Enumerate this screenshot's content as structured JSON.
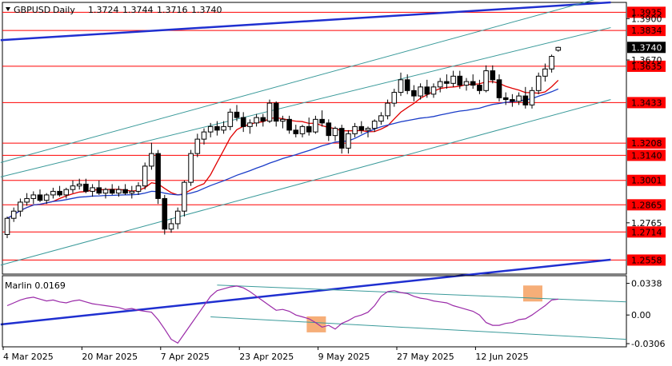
{
  "chart_data": {
    "type": "candlestick",
    "symbol": "GBPUSD",
    "timeframe": "Daily",
    "ohlc_header": {
      "open": "1.3724",
      "high": "1.3744",
      "low": "1.3716",
      "close": "1.3740"
    },
    "title": "GBPUSD,Daily  1.3724 1.3744 1.3716 1.3740",
    "price_axis": {
      "ylim": [
        1.248,
        1.399
      ],
      "tick_labels": [
        "1.3900",
        "1.3670",
        "1.2765"
      ],
      "current_price": "1.3740"
    },
    "horizontal_levels": [
      {
        "value": 1.3935,
        "label": "1.3935",
        "color": "#ff0000"
      },
      {
        "value": 1.3834,
        "label": "1.3834",
        "color": "#ff0000"
      },
      {
        "value": 1.3635,
        "label": "1.3635",
        "color": "#ff0000"
      },
      {
        "value": 1.3433,
        "label": "1.3433",
        "color": "#ff0000"
      },
      {
        "value": 1.3208,
        "label": "1.3208",
        "color": "#ff0000"
      },
      {
        "value": 1.314,
        "label": "1.3140",
        "color": "#ff0000"
      },
      {
        "value": 1.3001,
        "label": "1.3001",
        "color": "#ff0000"
      },
      {
        "value": 1.2865,
        "label": "1.2865",
        "color": "#ff0000"
      },
      {
        "value": 1.2714,
        "label": "1.2714",
        "color": "#ff0000"
      },
      {
        "value": 1.2558,
        "label": "1.2558",
        "color": "#ff0000"
      }
    ],
    "x_axis": {
      "date_labels": [
        {
          "label": "4 Mar 2025",
          "index": 0
        },
        {
          "label": "20 Mar 2025",
          "index": 12
        },
        {
          "label": "7 Apr 2025",
          "index": 24
        },
        {
          "label": "23 Apr 2025",
          "index": 36
        },
        {
          "label": "9 May 2025",
          "index": 48
        },
        {
          "label": "27 May 2025",
          "index": 60
        },
        {
          "label": "12 Jun 2025",
          "index": 72
        }
      ]
    },
    "candles": [
      [
        1.27,
        1.28,
        1.268,
        1.279
      ],
      [
        1.279,
        1.285,
        1.277,
        1.283
      ],
      [
        1.283,
        1.29,
        1.28,
        1.288
      ],
      [
        1.288,
        1.293,
        1.286,
        1.29
      ],
      [
        1.29,
        1.294,
        1.287,
        1.292
      ],
      [
        1.292,
        1.295,
        1.288,
        1.289
      ],
      [
        1.289,
        1.293,
        1.287,
        1.292
      ],
      [
        1.292,
        1.296,
        1.29,
        1.294
      ],
      [
        1.294,
        1.297,
        1.291,
        1.292
      ],
      [
        1.292,
        1.296,
        1.29,
        1.295
      ],
      [
        1.295,
        1.3,
        1.293,
        1.297
      ],
      [
        1.297,
        1.301,
        1.295,
        1.298
      ],
      [
        1.298,
        1.301,
        1.293,
        1.294
      ],
      [
        1.294,
        1.298,
        1.291,
        1.296
      ],
      [
        1.296,
        1.3,
        1.292,
        1.293
      ],
      [
        1.293,
        1.296,
        1.29,
        1.295
      ],
      [
        1.295,
        1.298,
        1.292,
        1.293
      ],
      [
        1.293,
        1.297,
        1.291,
        1.295
      ],
      [
        1.295,
        1.298,
        1.292,
        1.293
      ],
      [
        1.293,
        1.297,
        1.29,
        1.294
      ],
      [
        1.294,
        1.299,
        1.292,
        1.297
      ],
      [
        1.297,
        1.31,
        1.295,
        1.308
      ],
      [
        1.308,
        1.321,
        1.306,
        1.315
      ],
      [
        1.315,
        1.317,
        1.287,
        1.29
      ],
      [
        1.29,
        1.292,
        1.27,
        1.273
      ],
      [
        1.273,
        1.279,
        1.271,
        1.276
      ],
      [
        1.276,
        1.285,
        1.273,
        1.283
      ],
      [
        1.283,
        1.3,
        1.28,
        1.299
      ],
      [
        1.299,
        1.317,
        1.297,
        1.315
      ],
      [
        1.315,
        1.326,
        1.313,
        1.323
      ],
      [
        1.323,
        1.329,
        1.32,
        1.327
      ],
      [
        1.327,
        1.332,
        1.324,
        1.33
      ],
      [
        1.33,
        1.333,
        1.325,
        1.328
      ],
      [
        1.328,
        1.333,
        1.326,
        1.33
      ],
      [
        1.33,
        1.34,
        1.328,
        1.338
      ],
      [
        1.338,
        1.342,
        1.333,
        1.335
      ],
      [
        1.335,
        1.338,
        1.327,
        1.33
      ],
      [
        1.33,
        1.334,
        1.326,
        1.332
      ],
      [
        1.332,
        1.337,
        1.33,
        1.335
      ],
      [
        1.335,
        1.337,
        1.33,
        1.333
      ],
      [
        1.333,
        1.345,
        1.332,
        1.343
      ],
      [
        1.343,
        1.344,
        1.33,
        1.333
      ],
      [
        1.333,
        1.336,
        1.329,
        1.334
      ],
      [
        1.334,
        1.336,
        1.326,
        1.328
      ],
      [
        1.328,
        1.331,
        1.324,
        1.326
      ],
      [
        1.326,
        1.331,
        1.324,
        1.33
      ],
      [
        1.33,
        1.335,
        1.325,
        1.327
      ],
      [
        1.327,
        1.336,
        1.326,
        1.334
      ],
      [
        1.334,
        1.339,
        1.33,
        1.332
      ],
      [
        1.332,
        1.334,
        1.322,
        1.325
      ],
      [
        1.325,
        1.33,
        1.322,
        1.329
      ],
      [
        1.329,
        1.331,
        1.315,
        1.318
      ],
      [
        1.318,
        1.328,
        1.315,
        1.326
      ],
      [
        1.326,
        1.332,
        1.324,
        1.33
      ],
      [
        1.33,
        1.333,
        1.326,
        1.328
      ],
      [
        1.328,
        1.33,
        1.324,
        1.329
      ],
      [
        1.329,
        1.334,
        1.327,
        1.333
      ],
      [
        1.333,
        1.338,
        1.331,
        1.336
      ],
      [
        1.336,
        1.345,
        1.334,
        1.343
      ],
      [
        1.343,
        1.351,
        1.341,
        1.349
      ],
      [
        1.349,
        1.36,
        1.347,
        1.356
      ],
      [
        1.356,
        1.359,
        1.348,
        1.35
      ],
      [
        1.35,
        1.353,
        1.344,
        1.347
      ],
      [
        1.347,
        1.354,
        1.345,
        1.352
      ],
      [
        1.352,
        1.356,
        1.346,
        1.348
      ],
      [
        1.348,
        1.354,
        1.346,
        1.352
      ],
      [
        1.352,
        1.357,
        1.349,
        1.355
      ],
      [
        1.355,
        1.359,
        1.351,
        1.354
      ],
      [
        1.354,
        1.361,
        1.352,
        1.358
      ],
      [
        1.358,
        1.361,
        1.351,
        1.353
      ],
      [
        1.353,
        1.357,
        1.35,
        1.355
      ],
      [
        1.355,
        1.359,
        1.351,
        1.353
      ],
      [
        1.353,
        1.356,
        1.348,
        1.35
      ],
      [
        1.35,
        1.364,
        1.349,
        1.361
      ],
      [
        1.361,
        1.364,
        1.354,
        1.356
      ],
      [
        1.356,
        1.359,
        1.344,
        1.346
      ],
      [
        1.346,
        1.349,
        1.342,
        1.345
      ],
      [
        1.345,
        1.348,
        1.341,
        1.344
      ],
      [
        1.344,
        1.349,
        1.342,
        1.347
      ],
      [
        1.347,
        1.352,
        1.34,
        1.342
      ],
      [
        1.342,
        1.352,
        1.34,
        1.35
      ],
      [
        1.35,
        1.36,
        1.348,
        1.358
      ],
      [
        1.358,
        1.365,
        1.355,
        1.362
      ],
      [
        1.362,
        1.37,
        1.36,
        1.369
      ],
      [
        1.3724,
        1.3744,
        1.3716,
        1.374
      ]
    ],
    "indicator": {
      "name": "Marlin",
      "value": "0.0169",
      "label": "Marlin 0.0169",
      "ylim": [
        -0.034,
        0.042
      ],
      "tick_labels": [
        "0.0338",
        "0.00",
        "-0.0306"
      ],
      "values": [
        0.01,
        0.013,
        0.016,
        0.018,
        0.019,
        0.017,
        0.015,
        0.016,
        0.014,
        0.013,
        0.015,
        0.016,
        0.014,
        0.012,
        0.011,
        0.01,
        0.009,
        0.008,
        0.006,
        0.007,
        0.005,
        0.004,
        0.003,
        -0.005,
        -0.015,
        -0.026,
        -0.03,
        -0.02,
        -0.01,
        0.0,
        0.01,
        0.02,
        0.026,
        0.028,
        0.03,
        0.031,
        0.029,
        0.025,
        0.02,
        0.015,
        0.01,
        0.005,
        0.006,
        0.004,
        0.0,
        -0.002,
        -0.004,
        -0.008,
        -0.013,
        -0.011,
        -0.015,
        -0.009,
        -0.006,
        -0.002,
        0.0,
        0.003,
        0.01,
        0.02,
        0.025,
        0.026,
        0.024,
        0.023,
        0.02,
        0.018,
        0.017,
        0.015,
        0.014,
        0.013,
        0.01,
        0.008,
        0.006,
        0.004,
        0.0,
        -0.008,
        -0.011,
        -0.011,
        -0.009,
        -0.008,
        -0.005,
        -0.004,
        0.0,
        0.005,
        0.01,
        0.016,
        0.0169
      ]
    },
    "moving_averages": {
      "fast": {
        "color": "#e00000"
      },
      "slow": {
        "color": "#1a3cc8"
      }
    },
    "colors": {
      "levels": "#ff0000",
      "channel": "#3a9a9a",
      "trend_blue": "#1f2fd0",
      "oscillator": "#9a2aa8",
      "highlight": "#f4a060",
      "bull_candle": "#ffffff",
      "bear_candle": "#000000"
    }
  }
}
